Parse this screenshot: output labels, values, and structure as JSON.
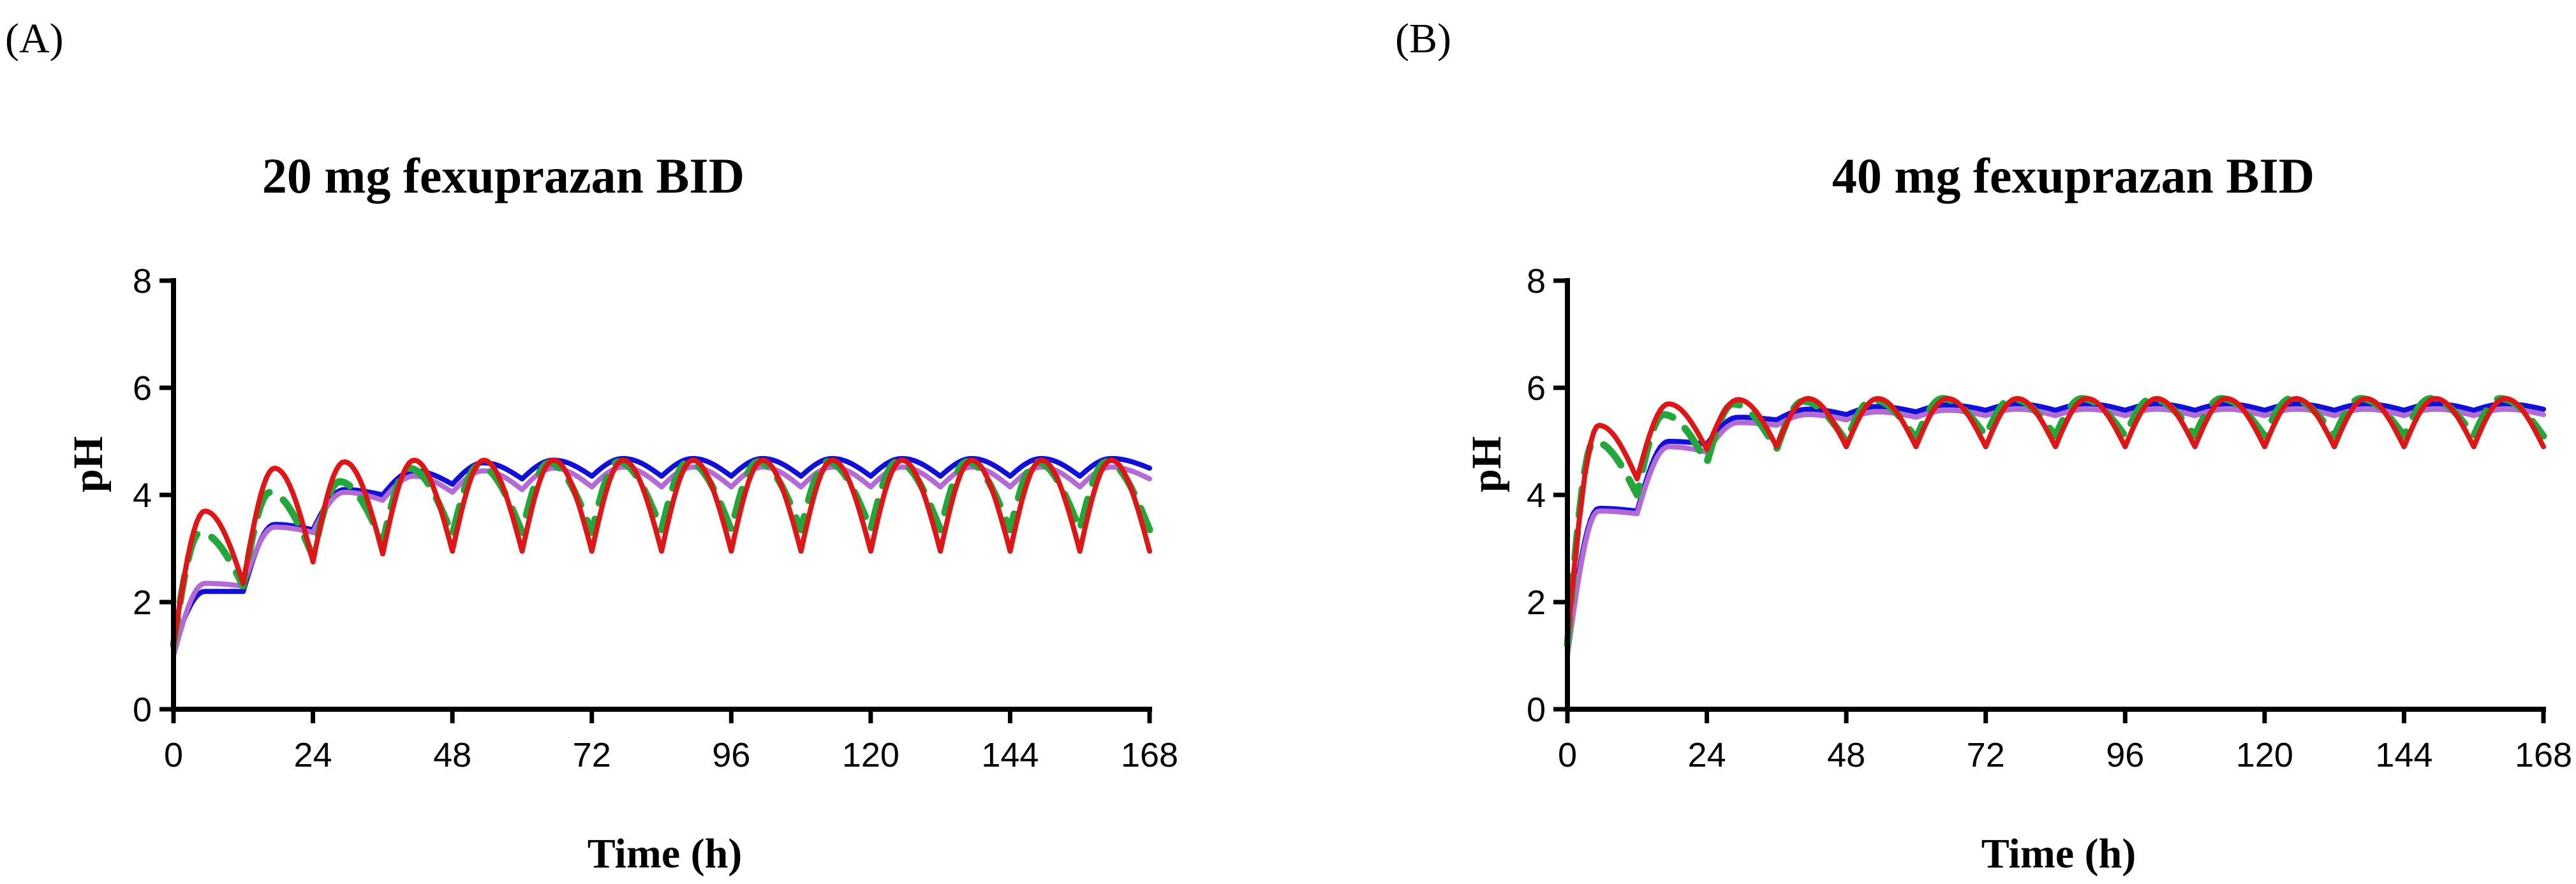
{
  "chart_data": [
    {
      "panel_label": "(A)",
      "type": "line",
      "title": "20 mg fexuprazan BID",
      "xlabel": "Time (h)",
      "ylabel": "pH",
      "xlim": [
        0,
        168
      ],
      "ylim": [
        0,
        8
      ],
      "xticks": [
        "0",
        "24",
        "48",
        "72",
        "96",
        "120",
        "144",
        "168"
      ],
      "yticks": [
        "0",
        "2",
        "4",
        "6",
        "8"
      ],
      "grid": false,
      "dosing_interval_h": 12,
      "series": [
        {
          "name": "blue",
          "color": "#1010d8",
          "dash": "solid",
          "x": [
            0,
            12,
            24,
            36,
            48,
            60,
            72,
            84,
            96,
            108,
            120,
            132,
            144,
            156,
            168
          ],
          "troughs": [
            1.15,
            2.2,
            3.35,
            4.0,
            4.2,
            4.3,
            4.35,
            4.35,
            4.35,
            4.35,
            4.35,
            4.35,
            4.35,
            4.35,
            4.5
          ],
          "peaks": [
            2.2,
            3.45,
            4.1,
            4.45,
            4.6,
            4.65,
            4.68,
            4.68,
            4.68,
            4.68,
            4.68,
            4.68,
            4.68,
            4.68
          ]
        },
        {
          "name": "purple",
          "color": "#b46ad6",
          "dash": "solid",
          "x": [
            0,
            12,
            24,
            36,
            48,
            60,
            72,
            84,
            96,
            108,
            120,
            132,
            144,
            156,
            168
          ],
          "troughs": [
            1.0,
            2.3,
            3.3,
            3.9,
            4.05,
            4.1,
            4.15,
            4.15,
            4.15,
            4.15,
            4.15,
            4.15,
            4.15,
            4.15,
            4.3
          ],
          "peaks": [
            2.35,
            3.4,
            4.05,
            4.35,
            4.45,
            4.5,
            4.52,
            4.52,
            4.52,
            4.52,
            4.52,
            4.52,
            4.52,
            4.52
          ]
        },
        {
          "name": "green-dashed",
          "color": "#22a83a",
          "dash": "dashed",
          "x": [
            0,
            12,
            24,
            36,
            48,
            60,
            72,
            84,
            96,
            108,
            120,
            132,
            144,
            156,
            168
          ],
          "troughs": [
            1.2,
            2.3,
            2.85,
            3.1,
            3.25,
            3.3,
            3.3,
            3.35,
            3.35,
            3.35,
            3.35,
            3.35,
            3.35,
            3.35,
            3.35
          ],
          "peaks": [
            3.3,
            4.05,
            4.25,
            4.5,
            4.55,
            4.6,
            4.62,
            4.62,
            4.62,
            4.62,
            4.62,
            4.62,
            4.62,
            4.62
          ]
        },
        {
          "name": "red",
          "color": "#e01616",
          "dash": "solid",
          "x": [
            0,
            12,
            24,
            36,
            48,
            60,
            72,
            84,
            96,
            108,
            120,
            132,
            144,
            156,
            168
          ],
          "troughs": [
            1.2,
            2.35,
            2.75,
            2.9,
            2.95,
            2.95,
            2.95,
            2.95,
            2.95,
            2.95,
            2.95,
            2.95,
            2.95,
            2.95,
            2.95
          ],
          "peaks": [
            3.7,
            4.5,
            4.62,
            4.65,
            4.65,
            4.65,
            4.65,
            4.65,
            4.65,
            4.65,
            4.65,
            4.65,
            4.65,
            4.65
          ]
        }
      ]
    },
    {
      "panel_label": "(B)",
      "type": "line",
      "title": "40 mg fexuprazan BID",
      "xlabel": "Time (h)",
      "ylabel": "pH",
      "xlim": [
        0,
        168
      ],
      "ylim": [
        0,
        8
      ],
      "xticks": [
        "0",
        "24",
        "48",
        "72",
        "96",
        "120",
        "144",
        "168"
      ],
      "yticks": [
        "0",
        "2",
        "4",
        "6",
        "8"
      ],
      "grid": false,
      "dosing_interval_h": 12,
      "series": [
        {
          "name": "blue",
          "color": "#1010d8",
          "dash": "solid",
          "x": [
            0,
            12,
            24,
            36,
            48,
            60,
            72,
            84,
            96,
            108,
            120,
            132,
            144,
            156,
            168
          ],
          "troughs": [
            1.15,
            3.7,
            4.95,
            5.4,
            5.5,
            5.55,
            5.58,
            5.58,
            5.58,
            5.58,
            5.58,
            5.58,
            5.58,
            5.58,
            5.6
          ],
          "peaks": [
            3.75,
            5.0,
            5.45,
            5.6,
            5.65,
            5.68,
            5.7,
            5.7,
            5.7,
            5.7,
            5.7,
            5.7,
            5.7,
            5.7
          ]
        },
        {
          "name": "purple",
          "color": "#b46ad6",
          "dash": "solid",
          "x": [
            0,
            12,
            24,
            36,
            48,
            60,
            72,
            84,
            96,
            108,
            120,
            132,
            144,
            156,
            168
          ],
          "troughs": [
            1.0,
            3.65,
            4.8,
            5.3,
            5.4,
            5.45,
            5.48,
            5.48,
            5.48,
            5.48,
            5.48,
            5.48,
            5.48,
            5.48,
            5.5
          ],
          "peaks": [
            3.7,
            4.9,
            5.35,
            5.5,
            5.55,
            5.58,
            5.6,
            5.6,
            5.6,
            5.6,
            5.6,
            5.6,
            5.6,
            5.6
          ]
        },
        {
          "name": "green-dashed",
          "color": "#22a83a",
          "dash": "dashed",
          "x": [
            0,
            12,
            24,
            36,
            48,
            60,
            72,
            84,
            96,
            108,
            120,
            132,
            144,
            156,
            168
          ],
          "troughs": [
            1.2,
            4.0,
            4.6,
            4.85,
            5.0,
            5.05,
            5.1,
            5.1,
            5.1,
            5.1,
            5.1,
            5.1,
            5.1,
            5.1,
            5.1
          ],
          "peaks": [
            5.0,
            5.5,
            5.7,
            5.75,
            5.78,
            5.8,
            5.8,
            5.8,
            5.8,
            5.8,
            5.8,
            5.8,
            5.8,
            5.8
          ]
        },
        {
          "name": "red",
          "color": "#e01616",
          "dash": "solid",
          "x": [
            0,
            12,
            24,
            36,
            48,
            60,
            72,
            84,
            96,
            108,
            120,
            132,
            144,
            156,
            168
          ],
          "troughs": [
            1.3,
            4.3,
            4.85,
            4.9,
            4.9,
            4.9,
            4.9,
            4.9,
            4.9,
            4.9,
            4.9,
            4.9,
            4.9,
            4.9,
            4.9
          ],
          "peaks": [
            5.3,
            5.7,
            5.78,
            5.8,
            5.8,
            5.8,
            5.8,
            5.8,
            5.8,
            5.8,
            5.8,
            5.8,
            5.8,
            5.8
          ]
        }
      ]
    }
  ]
}
